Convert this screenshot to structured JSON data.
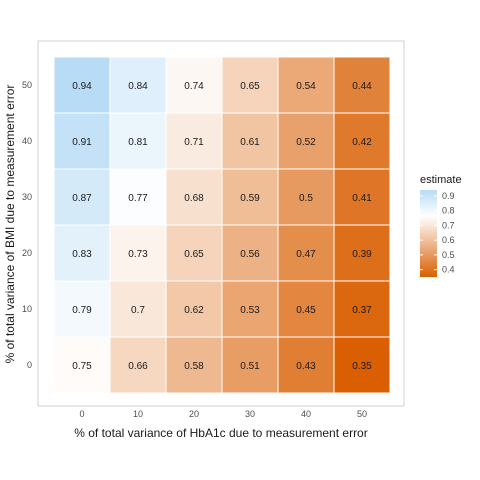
{
  "chart_data": {
    "type": "heatmap",
    "title": "",
    "xlabel": "% of total variance of HbA1c due to measurement error",
    "ylabel": "% of total variance of BMI due to measurement error",
    "x": [
      0,
      10,
      20,
      30,
      40,
      50
    ],
    "y": [
      0,
      10,
      20,
      30,
      40,
      50
    ],
    "values": [
      [
        0.75,
        0.66,
        0.58,
        0.51,
        0.43,
        0.35
      ],
      [
        0.79,
        0.7,
        0.62,
        0.53,
        0.45,
        0.37
      ],
      [
        0.83,
        0.73,
        0.65,
        0.56,
        0.47,
        0.39
      ],
      [
        0.87,
        0.77,
        0.68,
        0.59,
        0.5,
        0.41
      ],
      [
        0.91,
        0.81,
        0.71,
        0.61,
        0.52,
        0.42
      ],
      [
        0.94,
        0.84,
        0.74,
        0.65,
        0.54,
        0.44
      ]
    ],
    "labels": [
      [
        "0.75",
        "0.66",
        "0.58",
        "0.51",
        "0.43",
        "0.35"
      ],
      [
        "0.79",
        "0.7",
        "0.62",
        "0.53",
        "0.45",
        "0.37"
      ],
      [
        "0.83",
        "0.73",
        "0.65",
        "0.56",
        "0.47",
        "0.39"
      ],
      [
        "0.87",
        "0.77",
        "0.68",
        "0.59",
        "0.5",
        "0.41"
      ],
      [
        "0.91",
        "0.81",
        "0.71",
        "0.61",
        "0.52",
        "0.42"
      ],
      [
        "0.94",
        "0.84",
        "0.74",
        "0.65",
        "0.54",
        "0.44"
      ]
    ],
    "legend": {
      "title": "estimate",
      "ticks": [
        "0.9",
        "0.8",
        "0.7",
        "0.6",
        "0.5",
        "0.4"
      ],
      "tick_values": [
        0.9,
        0.8,
        0.7,
        0.6,
        0.5,
        0.4
      ],
      "range": [
        0.35,
        0.94
      ],
      "placement": "right"
    },
    "colors": {
      "low": "#d95f02",
      "mid": "#ffffff",
      "high": "#b8dcf5",
      "midpoint": 0.76
    },
    "grid": false
  }
}
